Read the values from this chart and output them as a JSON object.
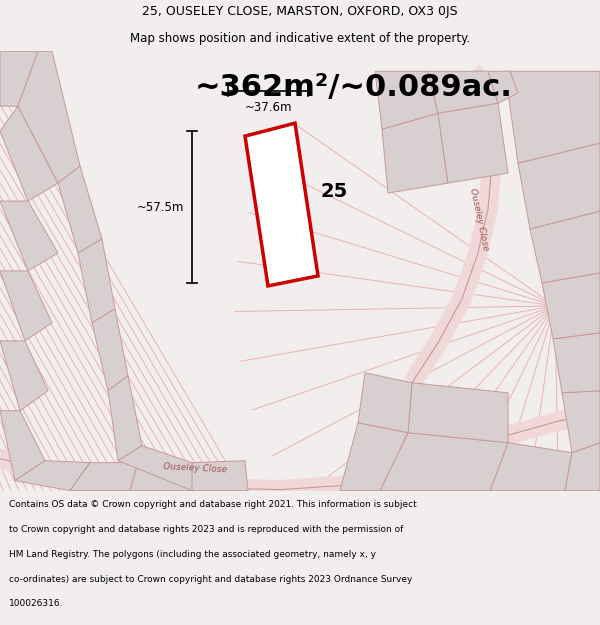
{
  "title_line1": "25, OUSELEY CLOSE, MARSTON, OXFORD, OX3 0JS",
  "title_line2": "Map shows position and indicative extent of the property.",
  "area_text": "~362m²/~0.089ac.",
  "label_number": "25",
  "dim_width": "~37.6m",
  "dim_height": "~57.5m",
  "road_label_bottom": "Ouseley Close",
  "road_label_right": "Ouseley Close",
  "footer_lines": [
    "Contains OS data © Crown copyright and database right 2021. This information is subject",
    "to Crown copyright and database rights 2023 and is reproduced with the permission of",
    "HM Land Registry. The polygons (including the associated geometry, namely x, y",
    "co-ordinates) are subject to Crown copyright and database rights 2023 Ordnance Survey",
    "100026316."
  ],
  "bg_color": "#f2eeee",
  "map_bg": "#ffffff",
  "plot_fill": "#ffffff",
  "plot_stroke": "#cc0000",
  "neighbor_fill": "#d8d0d0",
  "neighbor_stroke": "#c89898",
  "line_color": "#e8a8a8",
  "road_band_color": "#f0d8d8",
  "title_fontsize": 9,
  "area_fontsize": 22,
  "label_fontsize": 14,
  "footer_fontsize": 6.5
}
